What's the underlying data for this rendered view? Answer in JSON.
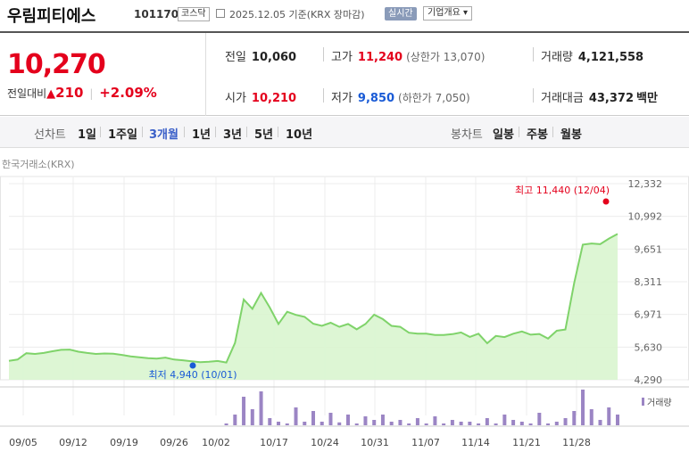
{
  "header": {
    "name": "우림피티에스",
    "code": "101170",
    "market": "코스닥",
    "date": "2025.12.05 기준(KRX 장마감)",
    "live_label": "실시간",
    "company_info_label": "기업개요 ▾"
  },
  "quote": {
    "price": "10,270",
    "change_label": "전일대비",
    "change_arrow": "▲",
    "change_value": "210",
    "change_pct": "+2.09%",
    "prev_close_label": "전일",
    "prev_close": "10,060",
    "high_label": "고가",
    "high": "11,240",
    "upper_limit": "(상한가 13,070)",
    "volume_label": "거래량",
    "volume": "4,121,558",
    "open_label": "시가",
    "open": "10,210",
    "low_label": "저가",
    "low": "9,850",
    "lower_limit": "(하한가 7,050)",
    "amount_label": "거래대금",
    "amount": "43,372",
    "amount_unit": "백만"
  },
  "period_bar": {
    "line_chart_label": "선차트",
    "ranges": [
      "1일",
      "1주일",
      "3개월",
      "1년",
      "3년",
      "5년",
      "10년"
    ],
    "selected": "3개월",
    "candle_label": "봉차트",
    "candles": [
      "일봉",
      "주봉",
      "월봉"
    ]
  },
  "chart_data": {
    "type": "area",
    "source": "한국거래소(KRX)",
    "yticks": [
      "12,332",
      "10,992",
      "9,651",
      "8,311",
      "6,971",
      "5,630",
      "4,290"
    ],
    "ylim": [
      4290,
      12332
    ],
    "xticks": [
      "09/05",
      "09/12",
      "09/19",
      "09/26",
      "10/02",
      "10/17",
      "10/24",
      "10/31",
      "11/07",
      "11/14",
      "11/21",
      "11/28"
    ],
    "high_annotation": "최고 11,440 (12/04)",
    "low_annotation": "최저 4,940 (10/01)",
    "volume_legend": "거래량",
    "colors": {
      "line": "#7fd36a",
      "fill": "#d9f5cf",
      "volume": "#9b85c4",
      "high": "#e4001c",
      "low": "#1a5bd6"
    },
    "prices": [
      5070,
      5120,
      5380,
      5350,
      5390,
      5460,
      5520,
      5530,
      5440,
      5390,
      5350,
      5370,
      5360,
      5310,
      5250,
      5210,
      5180,
      5160,
      5200,
      5120,
      5090,
      5050,
      5010,
      5030,
      5060,
      5000,
      5800,
      7580,
      7200,
      7850,
      7250,
      6580,
      7080,
      6950,
      6870,
      6590,
      6500,
      6630,
      6460,
      6580,
      6360,
      6580,
      6960,
      6780,
      6500,
      6460,
      6220,
      6180,
      6180,
      6130,
      6130,
      6160,
      6230,
      6050,
      6180,
      5790,
      6090,
      6040,
      6180,
      6270,
      6140,
      6170,
      5980,
      6300,
      6350,
      8250,
      9830,
      9880,
      9850,
      10080,
      10270
    ],
    "volumes": [
      0,
      0,
      0,
      0,
      0,
      0,
      0,
      0,
      0,
      0,
      0,
      0,
      0,
      0,
      0,
      0,
      0,
      0,
      0,
      0,
      0,
      0,
      0,
      0,
      0,
      0.05,
      0.3,
      0.8,
      0.45,
      0.95,
      0.2,
      0.1,
      0.05,
      0.5,
      0.1,
      0.4,
      0.1,
      0.35,
      0.08,
      0.3,
      0.05,
      0.25,
      0.15,
      0.3,
      0.1,
      0.15,
      0.05,
      0.2,
      0.05,
      0.25,
      0.05,
      0.15,
      0.1,
      0.1,
      0.05,
      0.2,
      0.05,
      0.3,
      0.15,
      0.1,
      0.05,
      0.35,
      0.05,
      0.1,
      0.2,
      0.4,
      1.0,
      0.45,
      0.15,
      0.5,
      0.3
    ]
  }
}
